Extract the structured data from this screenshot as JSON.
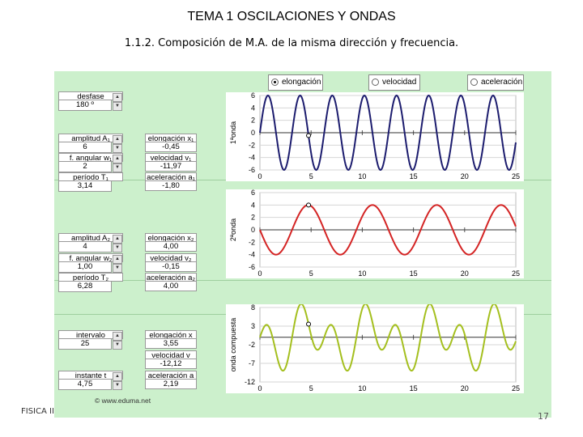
{
  "slide": {
    "title": "TEMA 1 OSCILACIONES Y ONDAS",
    "subtitle": "1.1.2. Composición de M.A. de la misma dirección y frecuencia.",
    "footer": "FISICA II",
    "page_number": "17"
  },
  "applet": {
    "radios": [
      {
        "label": "elongación",
        "selected": true
      },
      {
        "label": "velocidad",
        "selected": false
      },
      {
        "label": "aceleración",
        "selected": false
      }
    ],
    "desfase": {
      "label": "desfase",
      "value": "180 º"
    },
    "wave1": {
      "amplitude": {
        "label": "amplitud A₁",
        "value": "6"
      },
      "angular": {
        "label": "f. angular w₁",
        "value": "2"
      },
      "period": {
        "label": "período T₁",
        "value": "3,14"
      },
      "elongation": {
        "label": "elongación x₁",
        "value": "-0,45"
      },
      "velocity": {
        "label": "velocidad v₁",
        "value": "-11,97"
      },
      "acceleration": {
        "label": "aceleración a₁",
        "value": "-1,80"
      }
    },
    "wave2": {
      "amplitude": {
        "label": "amplitud A₂",
        "value": "4"
      },
      "angular": {
        "label": "f. angular w₂",
        "value": "1,00"
      },
      "period": {
        "label": "período T₂",
        "value": "6,28"
      },
      "elongation": {
        "label": "elongación x₂",
        "value": "4,00"
      },
      "velocity": {
        "label": "velocidad v₂",
        "value": "-0,15"
      },
      "acceleration": {
        "label": "aceleración a₂",
        "value": "4,00"
      }
    },
    "combined": {
      "interval": {
        "label": "intervalo",
        "value": "25"
      },
      "instant": {
        "label": "instante t",
        "value": "4,75"
      },
      "elongation": {
        "label": "elongación x",
        "value": "3,55"
      },
      "velocity": {
        "label": "velocidad v",
        "value": "-12,12"
      },
      "acceleration": {
        "label": "aceleración a",
        "value": "2,19"
      }
    },
    "watermark": "© www.eduma.net"
  },
  "chart_data": [
    {
      "type": "line",
      "ylabel": "1ªonda",
      "xlim": [
        0,
        25
      ],
      "ylim": [
        -6,
        6
      ],
      "x_ticks": [
        0,
        5,
        10,
        15,
        20,
        25
      ],
      "y_ticks": [
        6,
        4,
        2,
        0,
        -2,
        -4,
        -6
      ],
      "series": [
        {
          "amplitude": 6,
          "angular_frequency": 2,
          "phase": 0,
          "color": "#1c1c6e"
        }
      ],
      "marker": {
        "x": 4.75,
        "y": -0.45
      }
    },
    {
      "type": "line",
      "ylabel": "2ªonda",
      "xlim": [
        0,
        25
      ],
      "ylim": [
        -6,
        6
      ],
      "x_ticks": [
        0,
        5,
        10,
        15,
        20,
        25
      ],
      "y_ticks": [
        6,
        4,
        2,
        0,
        -2,
        -4,
        -6
      ],
      "series": [
        {
          "amplitude": 4,
          "angular_frequency": 1,
          "phase": 3.14159,
          "color": "#d42424"
        }
      ],
      "marker": {
        "x": 4.75,
        "y": 4.0
      }
    },
    {
      "type": "line",
      "ylabel": "onda compuesta",
      "xlim": [
        0,
        25
      ],
      "ylim": [
        -12,
        8
      ],
      "x_ticks": [
        0,
        5,
        10,
        15,
        20,
        25
      ],
      "y_ticks": [
        8,
        3,
        -2,
        -7,
        -12
      ],
      "series": [
        {
          "composed_of": [
            0,
            1
          ],
          "color": "#a4bf1e"
        }
      ],
      "marker": {
        "x": 4.75,
        "y": 3.55
      }
    }
  ]
}
